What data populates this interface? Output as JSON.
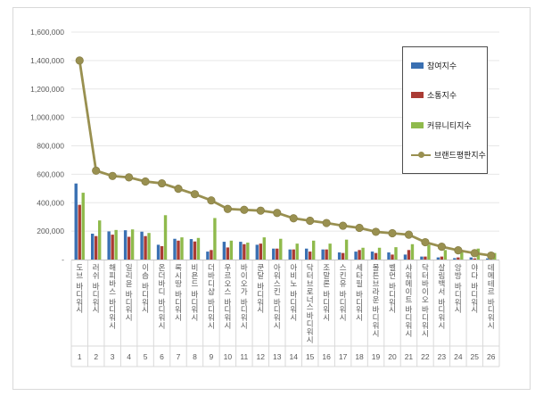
{
  "chart_data": {
    "type": "bar",
    "subtype": "grouped-bars-with-line-overlay",
    "title": "",
    "categories": [
      "도브 바디워시",
      "러쉬 바디워시",
      "해피바스 바디워시",
      "일리윤 바디워시",
      "이솝 바디워시",
      "온더바디 바디워시",
      "록시땅 바디워시",
      "비욘드 바디워시",
      "더바디샵 바디워시",
      "우르오스 바디워시",
      "바이오가 바디워시",
      "쿤달 바디워시",
      "아워스킨 바디워시",
      "아비노 바디워시",
      "닥터브로너스 바디워시",
      "조말론 바디워시",
      "스킨유 바디워시",
      "세타필 바디워시",
      "몰튼브라운 바디워시",
      "벨먼 바디워시",
      "샤워메이트 바디워시",
      "닥터바이오 바디워시",
      "살림백서 바디워시",
      "앙방 바디워시",
      "야다 바디워시",
      "데메테르 바디워시"
    ],
    "rank_labels": [
      "1",
      "2",
      "3",
      "4",
      "5",
      "6",
      "7",
      "8",
      "9",
      "10",
      "11",
      "12",
      "13",
      "14",
      "15",
      "16",
      "17",
      "18",
      "19",
      "20",
      "21",
      "22",
      "23",
      "24",
      "25",
      "26"
    ],
    "series": [
      {
        "name": "참여지수",
        "type": "bar",
        "color": "#3a70b2",
        "values": [
          535000,
          182000,
          198000,
          206000,
          196000,
          104000,
          146000,
          144000,
          56000,
          125000,
          125000,
          104000,
          77000,
          71000,
          77000,
          71000,
          50000,
          56000,
          56000,
          50000,
          35000,
          21000,
          15000,
          10000,
          15000,
          8000
        ]
      },
      {
        "name": "소통지수",
        "type": "bar",
        "color": "#aa3b34",
        "values": [
          385000,
          165000,
          175000,
          160000,
          165000,
          94000,
          133000,
          127000,
          67000,
          85000,
          108000,
          112000,
          77000,
          71000,
          56000,
          71000,
          46000,
          67000,
          46000,
          35000,
          67000,
          21000,
          21000,
          15000,
          8000,
          12000
        ]
      },
      {
        "name": "커뮤니티지수",
        "type": "bar",
        "color": "#8fba4c",
        "values": [
          470000,
          275000,
          208000,
          212000,
          187000,
          312000,
          156000,
          152000,
          292000,
          133000,
          119000,
          156000,
          146000,
          112000,
          133000,
          112000,
          140000,
          83000,
          83000,
          87000,
          108000,
          104000,
          67000,
          62000,
          77000,
          46000
        ]
      },
      {
        "name": "브랜드평판지수",
        "type": "line",
        "color": "#999050",
        "values": [
          1400000,
          625000,
          588000,
          578000,
          549000,
          536000,
          498000,
          460000,
          416000,
          356000,
          350000,
          344000,
          328000,
          290000,
          273000,
          257000,
          238000,
          223000,
          195000,
          185000,
          175000,
          122000,
          90000,
          65000,
          45000,
          28000
        ]
      }
    ],
    "y_axis": {
      "min": 0,
      "max": 1600000,
      "step": 200000,
      "tick_labels_top_to_bottom": [
        "1,600,000",
        "1,400,000",
        "1,200,000",
        "1,000,000",
        "800,000",
        "600,000",
        "400,000",
        "200,000",
        "-"
      ]
    },
    "legend_position": "overlay-top-right",
    "grid": true,
    "colors": {
      "grid_line": "#e7e7e7",
      "axis_line": "#c6c6c6",
      "separator": "#d9d9d9",
      "tick_text": "#595959",
      "frame_border": "#d9d9d9",
      "legend_border": "#4d4d4d"
    }
  }
}
